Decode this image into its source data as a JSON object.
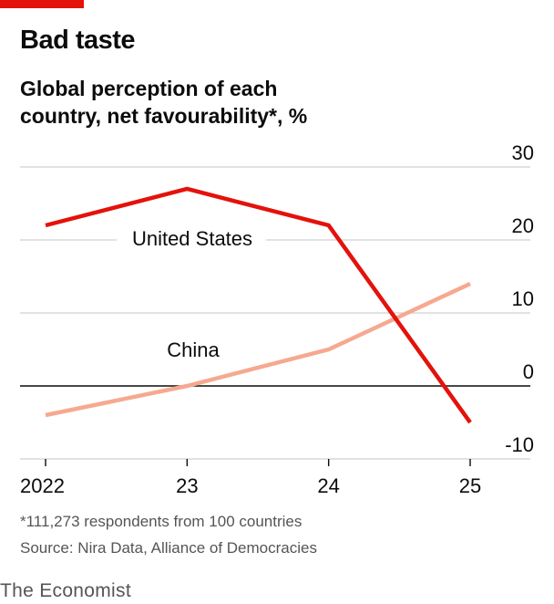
{
  "header": {
    "title": "Bad taste",
    "subtitle": "Global perception of each country, net favourability*, %"
  },
  "chart_data": {
    "type": "line",
    "title": "Bad taste",
    "subtitle": "Global perception of each country, net favourability*, %",
    "x": [
      "2022",
      "23",
      "24",
      "25"
    ],
    "ylim": [
      -10,
      30
    ],
    "yticks": [
      30,
      20,
      10,
      0,
      -10
    ],
    "series": [
      {
        "name": "United States",
        "color": "#e3120b",
        "values": [
          22,
          27,
          22,
          -5
        ]
      },
      {
        "name": "China",
        "color": "#f6a990",
        "values": [
          -4,
          0,
          5,
          14
        ]
      }
    ],
    "xlabel": "",
    "ylabel": "",
    "grid": true
  },
  "footer": {
    "footnote": "*111,273 respondents from 100 countries",
    "source": "Source: Nira Data, Alliance of Democracies",
    "brand": "The Economist"
  }
}
